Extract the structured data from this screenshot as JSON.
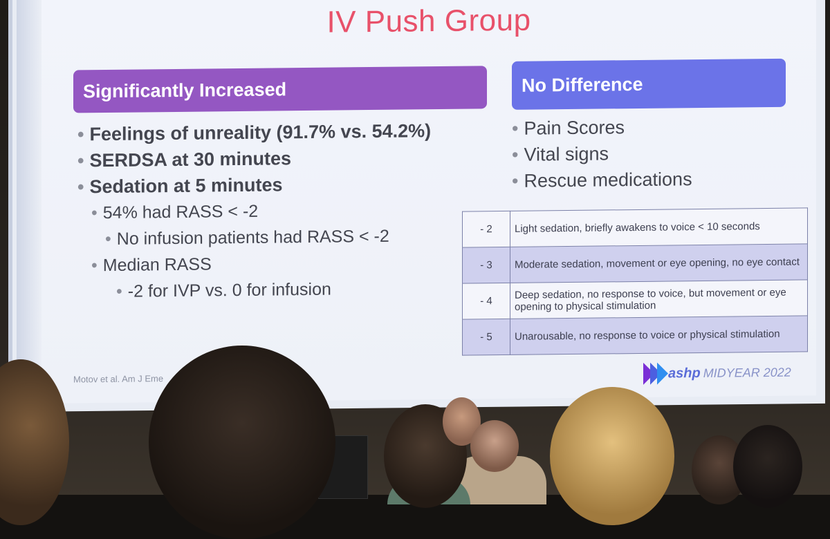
{
  "slide": {
    "title": "IV Push Group",
    "left_header": "Significantly Increased",
    "right_header": "No Difference",
    "left_bullets": [
      {
        "bullet": "•",
        "text": "Feelings of unreality (91.7% vs. 54.2%)"
      },
      {
        "bullet": "•",
        "text": "SERDSA at 30 minutes"
      },
      {
        "bullet": "•",
        "text": "Sedation at 5 minutes"
      },
      {
        "bullet": "•",
        "text": "54% had RASS < -2"
      },
      {
        "bullet": "•",
        "text": "No infusion patients had RASS < -2"
      },
      {
        "bullet": "•",
        "text": "Median RASS"
      },
      {
        "bullet": "•",
        "text": "-2 for IVP vs. 0 for infusion"
      }
    ],
    "right_bullets": [
      {
        "bullet": "•",
        "text": "Pain Scores"
      },
      {
        "bullet": "•",
        "text": "Vital signs"
      },
      {
        "bullet": "•",
        "text": "Rescue medications"
      }
    ],
    "rass_table": [
      {
        "score": "- 2",
        "description": "Light sedation, briefly awakens to voice < 10 seconds"
      },
      {
        "score": "- 3",
        "description": "Moderate sedation, movement or eye opening, no eye contact"
      },
      {
        "score": "- 4",
        "description": "Deep sedation, no response to voice, but movement or eye opening to physical stimulation"
      },
      {
        "score": "- 5",
        "description": "Unarousable, no response to voice or physical stimulation"
      }
    ],
    "citation": "Motov et al. Am J Eme",
    "logo": {
      "brand": "ashp",
      "event": "MIDYEAR 2022"
    }
  },
  "colors": {
    "title": "#e8516a",
    "left_header_bg": "#9457c2",
    "right_header_bg": "#6b73e8",
    "table_shade": "#cfd0ee"
  }
}
